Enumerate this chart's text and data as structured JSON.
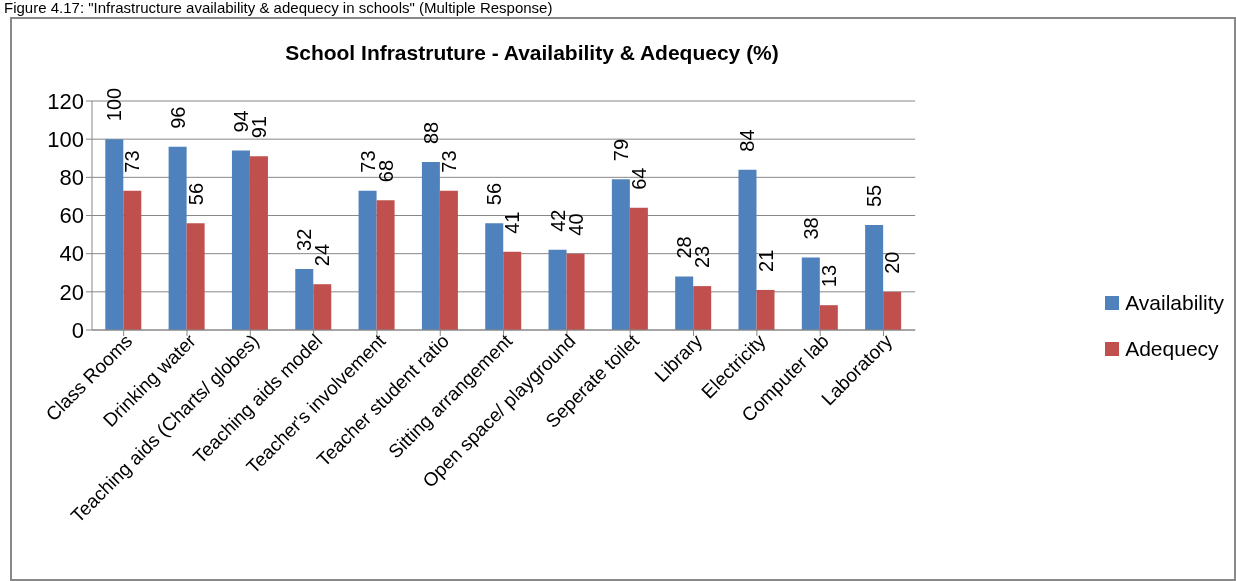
{
  "chart_data": {
    "type": "bar",
    "title": "School Infrastruture  - Availability & Adequecy (%)",
    "annotations": [
      "Figure 4.17: \"Infrastructure availability & adequecy in schools\" (Multiple Response)"
    ],
    "categories": [
      "Class Rooms",
      "Drinking water",
      "Teaching aids (Charts/ globes)",
      "Teaching aids model",
      "Teacher's involvement",
      "Teacher student ratio",
      "Sitting arrangement",
      "Open space/ playground",
      "Seperate toilet",
      "Library",
      "Electricity",
      "Computer lab",
      "Laboratory"
    ],
    "series": [
      {
        "name": "Availability",
        "color": "#4f81bd",
        "values": [
          100,
          96,
          94,
          32,
          73,
          88,
          56,
          42,
          79,
          28,
          84,
          38,
          55
        ]
      },
      {
        "name": "Adequecy",
        "color": "#c0504d",
        "values": [
          73,
          56,
          91,
          24,
          68,
          73,
          41,
          40,
          64,
          23,
          21,
          13,
          20
        ]
      }
    ],
    "ylim": [
      0,
      120
    ],
    "yticks": [
      0,
      20,
      40,
      60,
      80,
      100,
      120
    ],
    "grid": "y",
    "legend": "right",
    "data_labels": true
  }
}
